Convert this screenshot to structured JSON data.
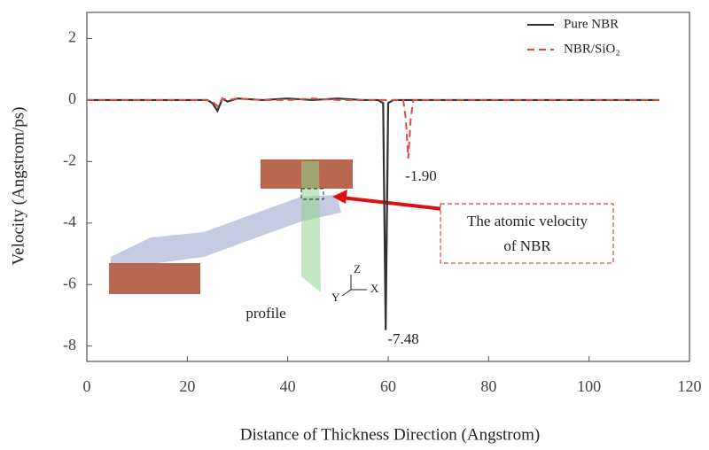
{
  "chart_data": {
    "type": "line",
    "xlabel": "Distance of Thickness Direction (Angstrom)",
    "ylabel": "Velocity (Angstrom/ps)",
    "x": [
      0,
      10,
      20,
      24,
      25,
      26,
      27,
      28,
      30,
      35,
      40,
      45,
      50,
      55,
      58,
      59,
      59.5,
      60,
      61,
      63,
      63.5,
      64,
      64.5,
      65,
      70,
      80,
      90,
      100,
      110,
      114
    ],
    "series": [
      {
        "name": "Pure NBR",
        "color": "#333333",
        "dash": false,
        "values": [
          0,
          0,
          0,
          0,
          -0.1,
          -0.35,
          0.05,
          -0.05,
          0.05,
          0,
          0.05,
          0,
          0.05,
          0,
          0,
          -0.1,
          -7.48,
          -0.1,
          0,
          0,
          0,
          0,
          0,
          0,
          0,
          0,
          0,
          0,
          0,
          0
        ]
      },
      {
        "name": "NBR/SiO₂",
        "color": "#e8473f",
        "dash": true,
        "values": [
          0,
          0,
          0,
          0,
          -0.05,
          -0.2,
          0.05,
          0,
          0.05,
          0,
          0,
          0.05,
          0,
          0,
          0,
          0,
          0,
          0,
          0,
          0,
          -0.6,
          -1.9,
          -0.6,
          0,
          0,
          0,
          0,
          0,
          0,
          0
        ]
      }
    ],
    "xlim": [
      0,
      120
    ],
    "xticks": [
      0,
      20,
      40,
      60,
      80,
      100,
      120
    ],
    "ylim": [
      -8.5,
      2.85
    ],
    "yticks": [
      2,
      0,
      -2,
      -4,
      -6,
      -8
    ],
    "legend": "upper right",
    "annotations": [
      "-1.90",
      "-7.48",
      "The atomic velocity",
      "of NBR",
      "profile",
      "Z",
      "Y",
      "X"
    ]
  }
}
